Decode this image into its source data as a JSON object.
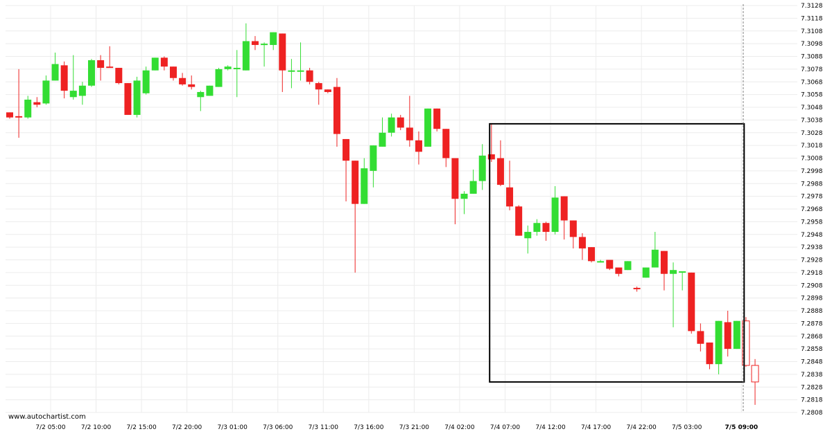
{
  "watermark": "www.autochartist.com",
  "colors": {
    "up": "#33dd33",
    "down": "#ee2222",
    "grid": "#ececec",
    "axis_text": "#000000",
    "pattern_box": "#000000",
    "now_line": "#808080",
    "forecast": "#ee2222"
  },
  "chart_data": {
    "type": "candlestick",
    "grid": true,
    "ylim": [
      7.2808,
      7.3128
    ],
    "y_ticks": [
      7.2808,
      7.2818,
      7.2828,
      7.2838,
      7.2848,
      7.2858,
      7.2868,
      7.2878,
      7.2888,
      7.2898,
      7.2908,
      7.2918,
      7.2928,
      7.2938,
      7.2948,
      7.2958,
      7.2968,
      7.2978,
      7.2988,
      7.2998,
      7.3008,
      7.3018,
      7.3028,
      7.3038,
      7.3048,
      7.3058,
      7.3068,
      7.3078,
      7.3088,
      7.3098,
      7.3108,
      7.3118,
      7.3128
    ],
    "x_ticks": [
      {
        "label": "7/2 05:00",
        "index": 4.5,
        "bold": false
      },
      {
        "label": "7/2 10:00",
        "index": 9.5,
        "bold": false
      },
      {
        "label": "7/2 15:00",
        "index": 14.5,
        "bold": false
      },
      {
        "label": "7/2 20:00",
        "index": 19.5,
        "bold": false
      },
      {
        "label": "7/3 01:00",
        "index": 24.5,
        "bold": false
      },
      {
        "label": "7/3 06:00",
        "index": 29.5,
        "bold": false
      },
      {
        "label": "7/3 11:00",
        "index": 34.5,
        "bold": false
      },
      {
        "label": "7/3 16:00",
        "index": 39.5,
        "bold": false
      },
      {
        "label": "7/3 21:00",
        "index": 44.5,
        "bold": false
      },
      {
        "label": "7/4 02:00",
        "index": 49.5,
        "bold": false
      },
      {
        "label": "7/4 07:00",
        "index": 54.5,
        "bold": false
      },
      {
        "label": "7/4 12:00",
        "index": 59.5,
        "bold": false
      },
      {
        "label": "7/4 17:00",
        "index": 64.5,
        "bold": false
      },
      {
        "label": "7/4 22:00",
        "index": 69.5,
        "bold": false
      },
      {
        "label": "7/5 03:00",
        "index": 74.5,
        "bold": false
      },
      {
        "label": "7/5 09:00",
        "index": 80.5,
        "bold": true
      }
    ],
    "candles": [
      {
        "o": 7.3044,
        "h": 7.3044,
        "l": 7.3039,
        "c": 7.304
      },
      {
        "o": 7.3041,
        "h": 7.3078,
        "l": 7.3024,
        "c": 7.304
      },
      {
        "o": 7.304,
        "h": 7.3057,
        "l": 7.3039,
        "c": 7.3054
      },
      {
        "o": 7.3052,
        "h": 7.3056,
        "l": 7.3048,
        "c": 7.305
      },
      {
        "o": 7.3051,
        "h": 7.3073,
        "l": 7.305,
        "c": 7.3069
      },
      {
        "o": 7.3069,
        "h": 7.3091,
        "l": 7.3069,
        "c": 7.3082
      },
      {
        "o": 7.3081,
        "h": 7.3084,
        "l": 7.3055,
        "c": 7.3061
      },
      {
        "o": 7.3056,
        "h": 7.3089,
        "l": 7.3054,
        "c": 7.3061
      },
      {
        "o": 7.3057,
        "h": 7.3068,
        "l": 7.305,
        "c": 7.3065
      },
      {
        "o": 7.3065,
        "h": 7.3086,
        "l": 7.3064,
        "c": 7.3085
      },
      {
        "o": 7.3085,
        "h": 7.3089,
        "l": 7.3069,
        "c": 7.3079
      },
      {
        "o": 7.308,
        "h": 7.3096,
        "l": 7.3079,
        "c": 7.3079
      },
      {
        "o": 7.3079,
        "h": 7.3079,
        "l": 7.3066,
        "c": 7.3067
      },
      {
        "o": 7.3067,
        "h": 7.3067,
        "l": 7.3042,
        "c": 7.3042
      },
      {
        "o": 7.3042,
        "h": 7.3072,
        "l": 7.304,
        "c": 7.3069
      },
      {
        "o": 7.3059,
        "h": 7.308,
        "l": 7.3058,
        "c": 7.3077
      },
      {
        "o": 7.3077,
        "h": 7.3087,
        "l": 7.3077,
        "c": 7.3087
      },
      {
        "o": 7.3087,
        "h": 7.3088,
        "l": 7.3077,
        "c": 7.308
      },
      {
        "o": 7.308,
        "h": 7.308,
        "l": 7.3069,
        "c": 7.3071
      },
      {
        "o": 7.3071,
        "h": 7.3075,
        "l": 7.3065,
        "c": 7.3066
      },
      {
        "o": 7.3066,
        "h": 7.3073,
        "l": 7.3062,
        "c": 7.3064
      },
      {
        "o": 7.3056,
        "h": 7.3061,
        "l": 7.3045,
        "c": 7.306
      },
      {
        "o": 7.3057,
        "h": 7.3065,
        "l": 7.3057,
        "c": 7.3065
      },
      {
        "o": 7.3064,
        "h": 7.3079,
        "l": 7.3064,
        "c": 7.3078
      },
      {
        "o": 7.3078,
        "h": 7.3081,
        "l": 7.3077,
        "c": 7.308
      },
      {
        "o": 7.3079,
        "h": 7.3093,
        "l": 7.3056,
        "c": 7.3079
      },
      {
        "o": 7.3077,
        "h": 7.3114,
        "l": 7.3077,
        "c": 7.31
      },
      {
        "o": 7.31,
        "h": 7.3104,
        "l": 7.3093,
        "c": 7.3097
      },
      {
        "o": 7.3097,
        "h": 7.3099,
        "l": 7.308,
        "c": 7.3098
      },
      {
        "o": 7.3097,
        "h": 7.3107,
        "l": 7.3093,
        "c": 7.3107
      },
      {
        "o": 7.3106,
        "h": 7.3106,
        "l": 7.306,
        "c": 7.3077
      },
      {
        "o": 7.3077,
        "h": 7.3086,
        "l": 7.3063,
        "c": 7.3077
      },
      {
        "o": 7.3077,
        "h": 7.3099,
        "l": 7.3069,
        "c": 7.3077
      },
      {
        "o": 7.3077,
        "h": 7.3079,
        "l": 7.3066,
        "c": 7.3068
      },
      {
        "o": 7.3067,
        "h": 7.3068,
        "l": 7.305,
        "c": 7.3062
      },
      {
        "o": 7.3062,
        "h": 7.3062,
        "l": 7.3059,
        "c": 7.306
      },
      {
        "o": 7.3064,
        "h": 7.3071,
        "l": 7.3017,
        "c": 7.3027
      },
      {
        "o": 7.3023,
        "h": 7.3023,
        "l": 7.2974,
        "c": 7.3006
      },
      {
        "o": 7.3006,
        "h": 7.3006,
        "l": 7.2918,
        "c": 7.2972
      },
      {
        "o": 7.2972,
        "h": 7.3008,
        "l": 7.2972,
        "c": 7.3
      },
      {
        "o": 7.2998,
        "h": 7.3018,
        "l": 7.2985,
        "c": 7.3018
      },
      {
        "o": 7.3017,
        "h": 7.304,
        "l": 7.3017,
        "c": 7.3028
      },
      {
        "o": 7.3028,
        "h": 7.3043,
        "l": 7.3025,
        "c": 7.304
      },
      {
        "o": 7.304,
        "h": 7.3042,
        "l": 7.303,
        "c": 7.3032
      },
      {
        "o": 7.3032,
        "h": 7.3057,
        "l": 7.3017,
        "c": 7.3022
      },
      {
        "o": 7.3022,
        "h": 7.3029,
        "l": 7.3003,
        "c": 7.3013
      },
      {
        "o": 7.3017,
        "h": 7.3047,
        "l": 7.3017,
        "c": 7.3047
      },
      {
        "o": 7.3047,
        "h": 7.3047,
        "l": 7.3029,
        "c": 7.3031
      },
      {
        "o": 7.3031,
        "h": 7.3031,
        "l": 7.3001,
        "c": 7.3008
      },
      {
        "o": 7.3008,
        "h": 7.3008,
        "l": 7.2956,
        "c": 7.2976
      },
      {
        "o": 7.2976,
        "h": 7.2982,
        "l": 7.2964,
        "c": 7.298
      },
      {
        "o": 7.298,
        "h": 7.2999,
        "l": 7.298,
        "c": 7.299
      },
      {
        "o": 7.299,
        "h": 7.3019,
        "l": 7.2983,
        "c": 7.301
      },
      {
        "o": 7.3011,
        "h": 7.3035,
        "l": 7.3005,
        "c": 7.3007
      },
      {
        "o": 7.3008,
        "h": 7.3022,
        "l": 7.2986,
        "c": 7.2987
      },
      {
        "o": 7.2985,
        "h": 7.3006,
        "l": 7.2967,
        "c": 7.297
      },
      {
        "o": 7.297,
        "h": 7.2971,
        "l": 7.2947,
        "c": 7.2947
      },
      {
        "o": 7.2945,
        "h": 7.2955,
        "l": 7.2933,
        "c": 7.295
      },
      {
        "o": 7.295,
        "h": 7.296,
        "l": 7.2947,
        "c": 7.2957
      },
      {
        "o": 7.2957,
        "h": 7.2958,
        "l": 7.2943,
        "c": 7.295
      },
      {
        "o": 7.295,
        "h": 7.2986,
        "l": 7.2948,
        "c": 7.2977
      },
      {
        "o": 7.2978,
        "h": 7.2978,
        "l": 7.2944,
        "c": 7.2959
      },
      {
        "o": 7.2959,
        "h": 7.2959,
        "l": 7.2937,
        "c": 7.2946
      },
      {
        "o": 7.2946,
        "h": 7.2949,
        "l": 7.2928,
        "c": 7.2937
      },
      {
        "o": 7.2938,
        "h": 7.2938,
        "l": 7.2926,
        "c": 7.2927
      },
      {
        "o": 7.2927,
        "h": 7.2928,
        "l": 7.2926,
        "c": 7.2927
      },
      {
        "o": 7.2928,
        "h": 7.2928,
        "l": 7.292,
        "c": 7.2921
      },
      {
        "o": 7.2922,
        "h": 7.2922,
        "l": 7.2915,
        "c": 7.2917
      },
      {
        "o": 7.292,
        "h": 7.2927,
        "l": 7.292,
        "c": 7.2927
      },
      {
        "o": 7.2906,
        "h": 7.2907,
        "l": 7.2903,
        "c": 7.2905
      },
      {
        "o": 7.2914,
        "h": 7.2922,
        "l": 7.2914,
        "c": 7.2922
      },
      {
        "o": 7.2922,
        "h": 7.295,
        "l": 7.2922,
        "c": 7.2936
      },
      {
        "o": 7.2935,
        "h": 7.2935,
        "l": 7.2904,
        "c": 7.2917
      },
      {
        "o": 7.2917,
        "h": 7.2926,
        "l": 7.2875,
        "c": 7.292
      },
      {
        "o": 7.2919,
        "h": 7.2919,
        "l": 7.2904,
        "c": 7.2919
      },
      {
        "o": 7.2918,
        "h": 7.2918,
        "l": 7.287,
        "c": 7.2872
      },
      {
        "o": 7.2872,
        "h": 7.2878,
        "l": 7.2856,
        "c": 7.2862
      },
      {
        "o": 7.2863,
        "h": 7.2863,
        "l": 7.2842,
        "c": 7.2846
      },
      {
        "o": 7.2846,
        "h": 7.288,
        "l": 7.2838,
        "c": 7.288
      },
      {
        "o": 7.2879,
        "h": 7.2888,
        "l": 7.2852,
        "c": 7.2858
      },
      {
        "o": 7.2858,
        "h": 7.288,
        "l": 7.2858,
        "c": 7.288
      }
    ],
    "forecast_candles": [
      {
        "o": 7.288,
        "h": 7.2883,
        "l": 7.2844,
        "c": 7.2845
      },
      {
        "o": 7.2845,
        "h": 7.285,
        "l": 7.2814,
        "c": 7.2832
      }
    ],
    "pattern_box": {
      "start_index": 52.8,
      "end_index": 80.8,
      "top": 7.3035,
      "bottom": 7.2832
    },
    "now_index": 80.7
  }
}
